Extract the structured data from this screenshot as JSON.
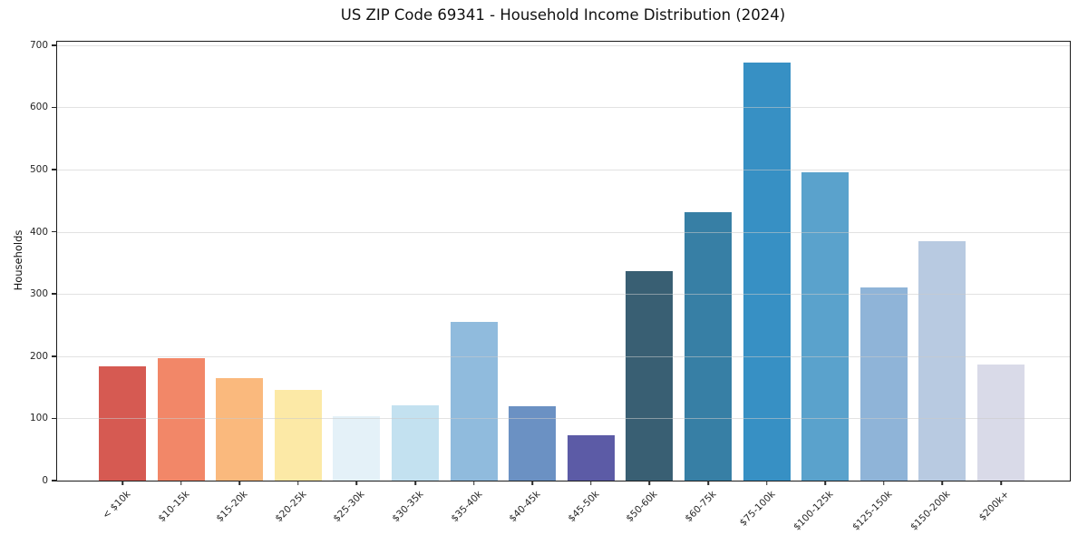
{
  "title": "US ZIP Code 69341 - Household Income Distribution (2024)",
  "chart_data": {
    "type": "bar",
    "title": "US ZIP Code 69341 - Household Income Distribution (2024)",
    "xlabel": "",
    "ylabel": "Households",
    "categories": [
      "< $10k",
      "$10-15k",
      "$15-20k",
      "$20-25k",
      "$25-30k",
      "$30-35k",
      "$35-40k",
      "$40-45k",
      "$45-50k",
      "$50-60k",
      "$60-75k",
      "$75-100k",
      "$100-125k",
      "$125-150k",
      "$150-200k",
      "$200k+"
    ],
    "values": [
      184,
      197,
      165,
      146,
      103,
      121,
      255,
      119,
      73,
      337,
      432,
      672,
      495,
      310,
      385,
      186
    ],
    "bar_colors": [
      "#d65a52",
      "#f28768",
      "#fab97d",
      "#fce9a6",
      "#e4f1f8",
      "#c3e1f0",
      "#90bbdd",
      "#6b91c3",
      "#5c5ba6",
      "#395f73",
      "#377fa5",
      "#3790c4",
      "#5aa2cc",
      "#8fb4d8",
      "#b8cae1",
      "#d9dae8"
    ],
    "ylim": [
      0,
      700
    ],
    "yticks": [
      0,
      100,
      200,
      300,
      400,
      500,
      600,
      700
    ],
    "grid": "horizontal",
    "legend": "none"
  }
}
